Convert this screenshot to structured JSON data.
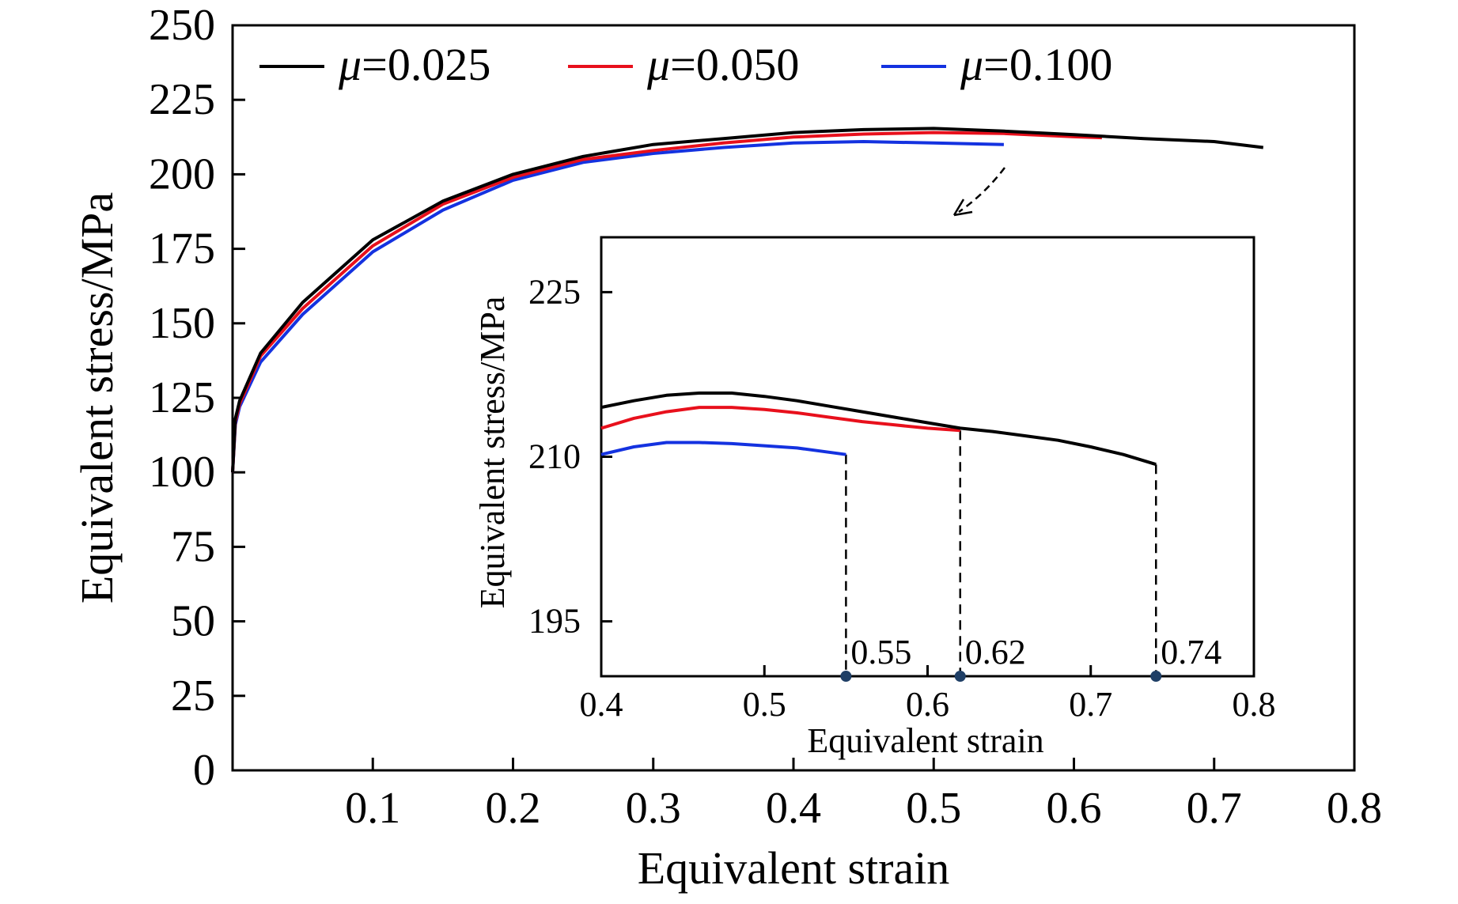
{
  "chart_data": [
    {
      "type": "line",
      "title": "",
      "xlabel": "Equivalent strain",
      "ylabel": "Equivalent stress/MPa",
      "xlim": [
        0,
        0.8
      ],
      "ylim": [
        0,
        250
      ],
      "xticks": [
        "0.1",
        "0.2",
        "0.3",
        "0.4",
        "0.5",
        "0.6",
        "0.7",
        "0.8"
      ],
      "yticks": [
        "0",
        "25",
        "50",
        "75",
        "100",
        "125",
        "150",
        "175",
        "200",
        "225",
        "250"
      ],
      "legend_position": "top",
      "series": [
        {
          "name": "μ=0.025",
          "color": "#000000",
          "x": [
            0,
            0.002,
            0.005,
            0.02,
            0.05,
            0.1,
            0.15,
            0.2,
            0.25,
            0.3,
            0.35,
            0.4,
            0.45,
            0.5,
            0.55,
            0.6,
            0.65,
            0.7,
            0.735
          ],
          "y": [
            100,
            118,
            124,
            140,
            157,
            178,
            191,
            200,
            206,
            210,
            212,
            214,
            215,
            215.4,
            214.5,
            213.3,
            212,
            211,
            209
          ]
        },
        {
          "name": "μ=0.050",
          "color": "#e8101c",
          "x": [
            0,
            0.002,
            0.005,
            0.02,
            0.05,
            0.1,
            0.15,
            0.2,
            0.25,
            0.3,
            0.35,
            0.4,
            0.45,
            0.5,
            0.55,
            0.6,
            0.62
          ],
          "y": [
            100,
            117,
            123,
            139,
            155,
            176,
            190,
            199,
            205,
            208,
            210.5,
            212.5,
            213.5,
            214,
            213.7,
            212.6,
            212.3
          ]
        },
        {
          "name": "μ=0.100",
          "color": "#1432e0",
          "x": [
            0,
            0.002,
            0.005,
            0.02,
            0.05,
            0.1,
            0.15,
            0.2,
            0.25,
            0.3,
            0.35,
            0.4,
            0.45,
            0.5,
            0.55
          ],
          "y": [
            100,
            116,
            122,
            137,
            153,
            174,
            188,
            198,
            204,
            207,
            209,
            210.5,
            211,
            210.5,
            210
          ]
        }
      ]
    },
    {
      "type": "line",
      "title": "",
      "xlabel": "Equivalent strain",
      "ylabel": "Equivalent stress/MPa",
      "xlim": [
        0.4,
        0.8
      ],
      "ylim": [
        190,
        230
      ],
      "xticks": [
        "0.4",
        "0.5",
        "0.6",
        "0.7",
        "0.8"
      ],
      "yticks": [
        "195",
        "210",
        "225"
      ],
      "series": [
        {
          "color": "#000000",
          "x": [
            0.4,
            0.42,
            0.44,
            0.46,
            0.48,
            0.5,
            0.52,
            0.54,
            0.56,
            0.58,
            0.6,
            0.62,
            0.64,
            0.66,
            0.68,
            0.7,
            0.72,
            0.74
          ],
          "y": [
            214.5,
            215.1,
            215.6,
            215.8,
            215.8,
            215.5,
            215.1,
            214.6,
            214.1,
            213.6,
            213.1,
            212.6,
            212.3,
            211.9,
            211.5,
            210.9,
            210.2,
            209.3
          ]
        },
        {
          "color": "#e8101c",
          "x": [
            0.4,
            0.42,
            0.44,
            0.46,
            0.48,
            0.5,
            0.52,
            0.54,
            0.56,
            0.58,
            0.6,
            0.62
          ],
          "y": [
            212.6,
            213.5,
            214.1,
            214.5,
            214.5,
            214.3,
            214.0,
            213.6,
            213.2,
            212.9,
            212.6,
            212.4
          ]
        },
        {
          "color": "#1432e0",
          "x": [
            0.4,
            0.42,
            0.44,
            0.46,
            0.48,
            0.5,
            0.52,
            0.55
          ],
          "y": [
            210.2,
            210.9,
            211.3,
            211.3,
            211.2,
            211.0,
            210.8,
            210.2
          ]
        }
      ],
      "markers": [
        {
          "x": 0.55,
          "label": "0.55",
          "y_from": 210.2
        },
        {
          "x": 0.62,
          "label": "0.62",
          "y_from": 212.4
        },
        {
          "x": 0.74,
          "label": "0.74",
          "y_from": 209.3
        }
      ]
    }
  ]
}
